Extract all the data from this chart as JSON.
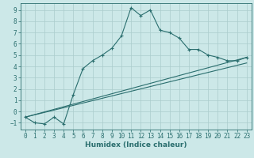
{
  "title": "",
  "xlabel": "Humidex (Indice chaleur)",
  "ylabel": "",
  "bg_color": "#cce8e8",
  "line_color": "#2a6e6e",
  "grid_color": "#aacccc",
  "xlim": [
    -0.5,
    23.5
  ],
  "ylim": [
    -1.6,
    9.6
  ],
  "xticks": [
    0,
    1,
    2,
    3,
    4,
    5,
    6,
    7,
    8,
    9,
    10,
    11,
    12,
    13,
    14,
    15,
    16,
    17,
    18,
    19,
    20,
    21,
    22,
    23
  ],
  "yticks": [
    -1,
    0,
    1,
    2,
    3,
    4,
    5,
    6,
    7,
    8,
    9
  ],
  "curve1_x": [
    0,
    1,
    2,
    3,
    4,
    5,
    6,
    7,
    8,
    9,
    10,
    11,
    12,
    13,
    14,
    15,
    16,
    17,
    18,
    19,
    20,
    21,
    22,
    23
  ],
  "curve1_y": [
    -0.5,
    -1.0,
    -1.1,
    -0.5,
    -1.1,
    1.5,
    3.8,
    4.5,
    5.0,
    5.6,
    6.7,
    9.2,
    8.5,
    9.0,
    7.2,
    7.0,
    6.5,
    5.5,
    5.5,
    5.0,
    4.8,
    4.5,
    4.5,
    4.8
  ],
  "curve2_x": [
    0,
    23
  ],
  "curve2_y": [
    -0.5,
    4.8
  ],
  "curve3_x": [
    0,
    23
  ],
  "curve3_y": [
    -0.5,
    4.3
  ],
  "figsize": [
    3.2,
    2.0
  ],
  "dpi": 100,
  "tick_fontsize": 5.5,
  "xlabel_fontsize": 6.5,
  "xlabel_fontweight": "bold"
}
